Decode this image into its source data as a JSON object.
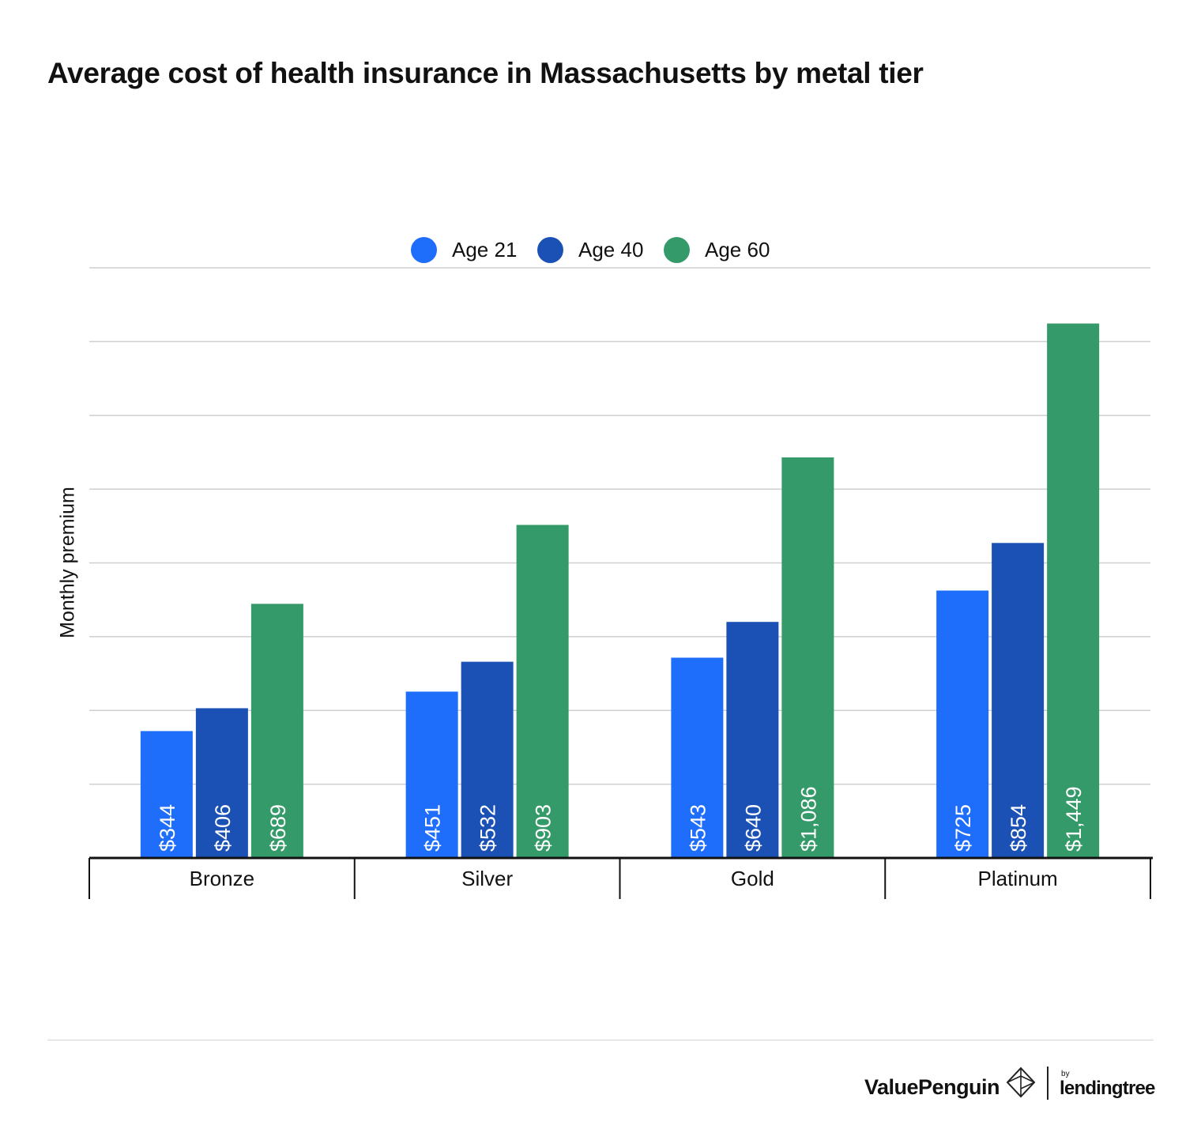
{
  "chart_data": {
    "type": "bar",
    "title": "Average cost of health insurance in Massachusetts by metal tier",
    "ylabel": "Monthly premium",
    "xlabel": "",
    "categories": [
      "Bronze",
      "Silver",
      "Gold",
      "Platinum"
    ],
    "series": [
      {
        "name": "Age 21",
        "color": "#1f6dfb",
        "values": [
          344,
          451,
          543,
          725
        ],
        "labels": [
          "$344",
          "$451",
          "$543",
          "$725"
        ]
      },
      {
        "name": "Age 40",
        "color": "#1b51b4",
        "values": [
          406,
          532,
          640,
          854
        ],
        "labels": [
          "$406",
          "$532",
          "$640",
          "$854"
        ]
      },
      {
        "name": "Age 60",
        "color": "#359a69",
        "values": [
          689,
          903,
          1086,
          1449
        ],
        "labels": [
          "$689",
          "$903",
          "$1,086",
          "$1,449"
        ]
      }
    ],
    "ylim": [
      0,
      1600
    ],
    "grid": true,
    "legend": "top-center"
  },
  "branding": {
    "name": "ValuePenguin",
    "by": "by",
    "parent": "lendingtree",
    "mark_icon": "penguin-diamond-icon"
  }
}
